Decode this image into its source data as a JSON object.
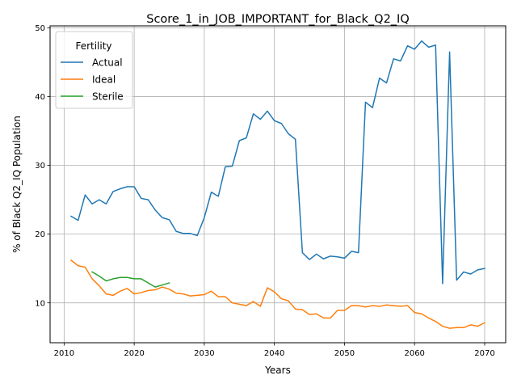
{
  "chart_data": {
    "type": "line",
    "title": "Score_1_in_JOB_IMPORTANT_for_Black_Q2_IQ",
    "xlabel": "Years",
    "ylabel": "% of Black Q2_IQ Population",
    "xlim": [
      2008,
      2073
    ],
    "ylim": [
      4.2,
      50.3
    ],
    "xticks": [
      2010,
      2020,
      2030,
      2040,
      2050,
      2060,
      2070
    ],
    "yticks": [
      10,
      20,
      30,
      40,
      50
    ],
    "grid": true,
    "legend": {
      "title": "Fertility",
      "placement": "top-left"
    },
    "series": [
      {
        "name": "Actual",
        "color": "#1f77b4",
        "x": [
          2011,
          2012,
          2013,
          2014,
          2015,
          2016,
          2017,
          2018,
          2019,
          2020,
          2021,
          2022,
          2023,
          2024,
          2025,
          2026,
          2027,
          2028,
          2029,
          2030,
          2031,
          2032,
          2033,
          2034,
          2035,
          2036,
          2037,
          2038,
          2039,
          2040,
          2041,
          2042,
          2043,
          2044,
          2045,
          2046,
          2047,
          2048,
          2049,
          2050,
          2051,
          2052,
          2053,
          2054,
          2055,
          2056,
          2057,
          2058,
          2059,
          2060,
          2061,
          2062,
          2063,
          2064,
          2065,
          2066,
          2067,
          2068,
          2069,
          2070
        ],
        "values": [
          22.6,
          22.0,
          25.7,
          24.4,
          25.0,
          24.4,
          26.2,
          26.6,
          26.9,
          26.9,
          25.2,
          25.0,
          23.5,
          22.4,
          22.1,
          20.4,
          20.1,
          20.1,
          19.8,
          22.4,
          26.1,
          25.5,
          29.8,
          29.9,
          33.6,
          34.0,
          37.5,
          36.7,
          37.9,
          36.5,
          36.1,
          34.6,
          33.8,
          17.3,
          16.3,
          17.1,
          16.4,
          16.8,
          16.7,
          16.5,
          17.5,
          17.3,
          39.2,
          38.4,
          42.7,
          42.0,
          45.5,
          45.2,
          47.4,
          46.9,
          48.1,
          47.2,
          47.5,
          12.8,
          46.5,
          13.3,
          14.5,
          14.2,
          14.8,
          15.0
        ]
      },
      {
        "name": "Ideal",
        "color": "#ff7f0e",
        "x": [
          2011,
          2012,
          2013,
          2014,
          2015,
          2016,
          2017,
          2018,
          2019,
          2020,
          2021,
          2022,
          2023,
          2024,
          2025,
          2026,
          2027,
          2028,
          2029,
          2030,
          2031,
          2032,
          2033,
          2034,
          2035,
          2036,
          2037,
          2038,
          2039,
          2040,
          2041,
          2042,
          2043,
          2044,
          2045,
          2046,
          2047,
          2048,
          2049,
          2050,
          2051,
          2052,
          2053,
          2054,
          2055,
          2056,
          2057,
          2058,
          2059,
          2060,
          2061,
          2062,
          2063,
          2064,
          2065,
          2066,
          2067,
          2068,
          2069,
          2070
        ],
        "values": [
          16.2,
          15.4,
          15.2,
          13.5,
          12.5,
          11.3,
          11.1,
          11.7,
          12.1,
          11.3,
          11.5,
          11.8,
          11.9,
          12.3,
          12.0,
          11.4,
          11.3,
          11.0,
          11.1,
          11.2,
          11.7,
          10.9,
          10.9,
          10.0,
          9.8,
          9.6,
          10.2,
          9.5,
          12.2,
          11.6,
          10.6,
          10.3,
          9.1,
          9.0,
          8.3,
          8.4,
          7.8,
          7.8,
          8.9,
          8.9,
          9.6,
          9.6,
          9.4,
          9.6,
          9.5,
          9.7,
          9.6,
          9.5,
          9.6,
          8.6,
          8.4,
          7.8,
          7.3,
          6.6,
          6.3,
          6.4,
          6.4,
          6.8,
          6.6,
          7.1
        ]
      },
      {
        "name": "Sterile",
        "color": "#2ca02c",
        "x": [
          2014,
          2015,
          2016,
          2017,
          2018,
          2019,
          2020,
          2021,
          2022,
          2023,
          2024,
          2025
        ],
        "values": [
          14.5,
          13.9,
          13.2,
          13.5,
          13.7,
          13.7,
          13.5,
          13.5,
          12.9,
          12.3,
          12.6,
          12.9
        ]
      }
    ]
  }
}
